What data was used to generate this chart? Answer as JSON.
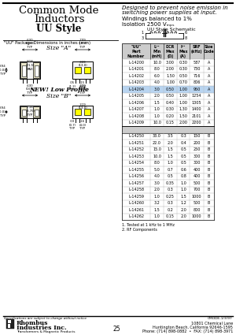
{
  "title_line1": "Common Mode",
  "title_line2": "Inductors",
  "subtitle": "UU Style",
  "pkg_label": "\"UU\" Package Dimensions in inches (mm)",
  "size_a_label": "Size \"A\"",
  "size_b_label": "Size \"B\"",
  "new_label": "NEW! Low Profile",
  "desc_lines": [
    "Designed to prevent noise emission in",
    "switching power supplies at input.",
    "Windings balanced to 1%",
    "Isolation 2500 Vₘₚₛ"
  ],
  "schematic_label": "UU Style Schematic",
  "table_col_headers": [
    "\"UU\"\nPart\nNumber",
    "L¹²\nMin\n(mH)",
    "DCR\nMax\n(Ω)",
    "I¹³\nMax\n(A)",
    "SRF\n(kHz)",
    "Size\nCode"
  ],
  "table_data_a": [
    [
      "L-14200",
      "10.0",
      "3.00",
      "0.30",
      "587",
      "A"
    ],
    [
      "L-14201",
      "8.0",
      "2.00",
      "0.30",
      "730",
      "A"
    ],
    [
      "L-14202",
      "6.0",
      "1.50",
      "0.50",
      "716",
      "A"
    ],
    [
      "L-14203",
      "4.0",
      "1.00",
      "0.70",
      "806",
      "A"
    ],
    [
      "L-14204",
      "3.0",
      "0.50",
      "1.00",
      "950",
      "A"
    ],
    [
      "L-14205",
      "2.0",
      "0.50",
      "1.00",
      "1254",
      "A"
    ],
    [
      "L-14206",
      "1.5",
      "0.40",
      "1.00",
      "1305",
      "A"
    ],
    [
      "L-14207",
      "1.0",
      "0.30",
      "1.30",
      "1400",
      "A"
    ],
    [
      "L-14208",
      "1.0",
      "0.20",
      "1.50",
      "2101",
      "A"
    ],
    [
      "L-14209",
      "10.0",
      "0.15",
      "2.00",
      "2200",
      "A"
    ]
  ],
  "table_data_b": [
    [
      "L-14250",
      "33.0",
      "3.5",
      "0.3",
      "150",
      "B"
    ],
    [
      "L-14251",
      "22.0",
      "2.0",
      "0.4",
      "200",
      "B"
    ],
    [
      "L-14252",
      "15.0",
      "1.5",
      "0.5",
      "250",
      "B"
    ],
    [
      "L-14253",
      "10.0",
      "1.5",
      "0.5",
      "300",
      "B"
    ],
    [
      "L-14254",
      "8.0",
      "1.0",
      "0.5",
      "300",
      "B"
    ],
    [
      "L-14255",
      "5.0",
      "0.7",
      "0.6",
      "400",
      "B"
    ],
    [
      "L-14256",
      "4.0",
      "0.5",
      "0.8",
      "400",
      "B"
    ],
    [
      "L-14257",
      "3.0",
      "0.35",
      "1.0",
      "500",
      "B"
    ],
    [
      "L-14258",
      "2.0",
      "0.3",
      "1.0",
      "700",
      "B"
    ],
    [
      "L-14259",
      "1.0",
      "0.25",
      "1.5",
      "1000",
      "B"
    ],
    [
      "L-14260",
      "3.2",
      "0.3",
      "1.2",
      "500",
      "B"
    ],
    [
      "L-14261",
      "1.5",
      "0.2",
      "2.0",
      "800",
      "B"
    ],
    [
      "L-14262",
      "1.0",
      "0.15",
      "2.0",
      "1000",
      "B"
    ]
  ],
  "highlight_row_a": 4,
  "note1": "1. Tested at 1 kHz to 1 MHz",
  "note2": "2. RF Components",
  "footer_spec": "Specifications are subject to change without notice",
  "footer_company1": "Rhombus",
  "footer_company2": "Industries Inc.",
  "footer_tag": "Transformers & Magnetic Products",
  "footer_addr1": "10801 Chemical Lane",
  "footer_addr2": "Huntington Beach, California 92646-1595",
  "footer_addr3": "Phone: (714) 898-0882  •  FAX: (714) 898-3971",
  "footer_page": "25",
  "footer_code": "CMODE-1/3/97",
  "bg": "#ffffff",
  "hdr_bg": "#cccccc",
  "hi_bg": "#b8d4f0",
  "black": "#000000",
  "dim_gray": "#666666",
  "yellow": "#ffff00",
  "tan": "#e8e4c8"
}
